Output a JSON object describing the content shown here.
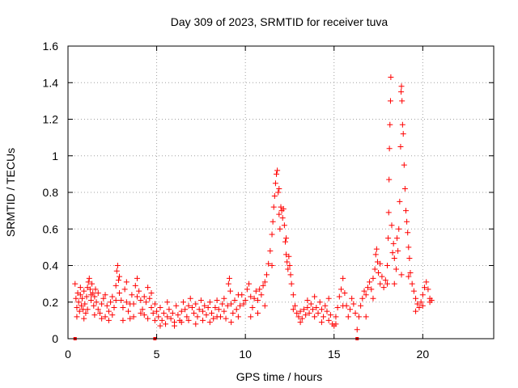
{
  "chart_data": {
    "type": "scatter",
    "title": "Day 309 of 2023, SRMTID for receiver tuva",
    "xlabel": "GPS time / hours",
    "ylabel": "SRMTID / TECUs",
    "xlim": [
      0,
      24
    ],
    "ylim": [
      0,
      1.6
    ],
    "xticks": [
      0,
      5,
      10,
      15,
      20
    ],
    "yticks": [
      0,
      0.2,
      0.4,
      0.6,
      0.8,
      1,
      1.2,
      1.4,
      1.6
    ],
    "xtick_labels": [
      "0",
      "5",
      "10",
      "15",
      "20"
    ],
    "ytick_labels": [
      "0",
      "0.2",
      "0.4",
      "0.6",
      "0.8",
      "1",
      "1.2",
      "1.4",
      "1.6"
    ],
    "grid": true,
    "marker": "+",
    "color": "#ff0000",
    "series": [
      {
        "name": "SRMTID",
        "points": [
          [
            0.4,
            0.3
          ],
          [
            0.45,
            0.22
          ],
          [
            0.5,
            0.17
          ],
          [
            0.55,
            0.25
          ],
          [
            0.6,
            0.2
          ],
          [
            0.65,
            0.15
          ],
          [
            0.7,
            0.24
          ],
          [
            0.75,
            0.18
          ],
          [
            0.8,
            0.22
          ],
          [
            0.85,
            0.16
          ],
          [
            0.9,
            0.26
          ],
          [
            0.95,
            0.19
          ],
          [
            1.0,
            0.14
          ],
          [
            1.05,
            0.23
          ],
          [
            1.1,
            0.28
          ],
          [
            1.15,
            0.31
          ],
          [
            1.2,
            0.33
          ],
          [
            1.25,
            0.27
          ],
          [
            1.3,
            0.21
          ],
          [
            1.35,
            0.3
          ],
          [
            1.4,
            0.25
          ],
          [
            1.45,
            0.18
          ],
          [
            1.5,
            0.23
          ],
          [
            1.55,
            0.27
          ],
          [
            1.6,
            0.2
          ],
          [
            1.7,
            0.16
          ],
          [
            1.8,
            0.14
          ],
          [
            1.9,
            0.19
          ],
          [
            2.0,
            0.22
          ],
          [
            2.1,
            0.12
          ],
          [
            2.2,
            0.18
          ],
          [
            2.3,
            0.15
          ],
          [
            2.4,
            0.2
          ],
          [
            2.5,
            0.23
          ],
          [
            2.6,
            0.17
          ],
          [
            2.7,
            0.29
          ],
          [
            2.75,
            0.37
          ],
          [
            2.8,
            0.4
          ],
          [
            2.85,
            0.32
          ],
          [
            2.9,
            0.25
          ],
          [
            3.0,
            0.21
          ],
          [
            3.1,
            0.17
          ],
          [
            3.2,
            0.27
          ],
          [
            3.3,
            0.2
          ],
          [
            3.4,
            0.15
          ],
          [
            3.5,
            0.11
          ],
          [
            3.6,
            0.24
          ],
          [
            3.7,
            0.19
          ],
          [
            3.8,
            0.29
          ],
          [
            3.9,
            0.33
          ],
          [
            4.0,
            0.26
          ],
          [
            4.1,
            0.21
          ],
          [
            4.2,
            0.16
          ],
          [
            4.3,
            0.13
          ],
          [
            4.4,
            0.2
          ],
          [
            4.5,
            0.28
          ],
          [
            4.6,
            0.22
          ],
          [
            4.7,
            0.17
          ],
          [
            4.8,
            0.14
          ],
          [
            4.9,
            0.19
          ],
          [
            0.5,
            0.12
          ],
          [
            0.7,
            0.28
          ],
          [
            0.9,
            0.11
          ],
          [
            1.1,
            0.16
          ],
          [
            1.3,
            0.24
          ],
          [
            1.5,
            0.13
          ],
          [
            1.7,
            0.25
          ],
          [
            1.9,
            0.11
          ],
          [
            2.1,
            0.24
          ],
          [
            2.3,
            0.1
          ],
          [
            2.5,
            0.13
          ],
          [
            2.7,
            0.21
          ],
          [
            2.9,
            0.34
          ],
          [
            3.1,
            0.1
          ],
          [
            3.3,
            0.31
          ],
          [
            3.5,
            0.19
          ],
          [
            3.7,
            0.12
          ],
          [
            3.9,
            0.23
          ],
          [
            4.1,
            0.14
          ],
          [
            4.3,
            0.23
          ],
          [
            4.5,
            0.11
          ],
          [
            4.7,
            0.25
          ],
          [
            4.9,
            0.1
          ],
          [
            5.0,
            0.15
          ],
          [
            5.1,
            0.12
          ],
          [
            5.2,
            0.17
          ],
          [
            5.3,
            0.1
          ],
          [
            5.4,
            0.14
          ],
          [
            5.5,
            0.08
          ],
          [
            5.6,
            0.12
          ],
          [
            5.7,
            0.16
          ],
          [
            5.8,
            0.11
          ],
          [
            5.9,
            0.14
          ],
          [
            6.0,
            0.09
          ],
          [
            6.1,
            0.18
          ],
          [
            6.2,
            0.13
          ],
          [
            6.3,
            0.1
          ],
          [
            6.4,
            0.15
          ],
          [
            6.5,
            0.2
          ],
          [
            6.6,
            0.16
          ],
          [
            6.7,
            0.12
          ],
          [
            6.8,
            0.18
          ],
          [
            6.9,
            0.22
          ],
          [
            7.0,
            0.17
          ],
          [
            7.1,
            0.14
          ],
          [
            7.2,
            0.19
          ],
          [
            7.3,
            0.12
          ],
          [
            7.4,
            0.16
          ],
          [
            7.5,
            0.21
          ],
          [
            7.6,
            0.15
          ],
          [
            7.7,
            0.18
          ],
          [
            7.8,
            0.13
          ],
          [
            7.9,
            0.17
          ],
          [
            8.0,
            0.2
          ],
          [
            8.1,
            0.14
          ],
          [
            8.2,
            0.11
          ],
          [
            8.3,
            0.17
          ],
          [
            8.4,
            0.21
          ],
          [
            8.5,
            0.16
          ],
          [
            8.6,
            0.12
          ],
          [
            8.7,
            0.19
          ],
          [
            8.8,
            0.15
          ],
          [
            8.9,
            0.11
          ],
          [
            9.0,
            0.18
          ],
          [
            9.05,
            0.3
          ],
          [
            9.1,
            0.33
          ],
          [
            9.15,
            0.26
          ],
          [
            9.2,
            0.19
          ],
          [
            9.3,
            0.14
          ],
          [
            9.4,
            0.21
          ],
          [
            9.5,
            0.16
          ],
          [
            9.6,
            0.12
          ],
          [
            9.7,
            0.18
          ],
          [
            9.8,
            0.24
          ],
          [
            9.9,
            0.19
          ],
          [
            5.2,
            0.07
          ],
          [
            5.6,
            0.2
          ],
          [
            6.0,
            0.07
          ],
          [
            6.4,
            0.09
          ],
          [
            6.8,
            0.1
          ],
          [
            7.2,
            0.08
          ],
          [
            7.6,
            0.1
          ],
          [
            8.0,
            0.09
          ],
          [
            8.4,
            0.12
          ],
          [
            8.8,
            0.22
          ],
          [
            9.2,
            0.09
          ],
          [
            9.6,
            0.24
          ],
          [
            10.0,
            0.21
          ],
          [
            10.1,
            0.27
          ],
          [
            10.2,
            0.3
          ],
          [
            10.3,
            0.23
          ],
          [
            10.4,
            0.17
          ],
          [
            10.5,
            0.22
          ],
          [
            10.6,
            0.26
          ],
          [
            10.7,
            0.21
          ],
          [
            10.8,
            0.27
          ],
          [
            10.9,
            0.24
          ],
          [
            11.0,
            0.29
          ],
          [
            11.1,
            0.31
          ],
          [
            11.2,
            0.35
          ],
          [
            11.3,
            0.41
          ],
          [
            11.4,
            0.48
          ],
          [
            11.5,
            0.57
          ],
          [
            11.55,
            0.64
          ],
          [
            11.6,
            0.72
          ],
          [
            11.65,
            0.78
          ],
          [
            11.7,
            0.85
          ],
          [
            11.75,
            0.9
          ],
          [
            11.8,
            0.92
          ],
          [
            11.85,
            0.8
          ],
          [
            11.9,
            0.68
          ],
          [
            11.95,
            0.6
          ],
          [
            12.0,
            0.72
          ],
          [
            12.05,
            0.7
          ],
          [
            12.1,
            0.66
          ],
          [
            12.15,
            0.71
          ],
          [
            12.2,
            0.62
          ],
          [
            12.25,
            0.53
          ],
          [
            12.3,
            0.46
          ],
          [
            12.35,
            0.42
          ],
          [
            12.4,
            0.38
          ],
          [
            12.45,
            0.45
          ],
          [
            12.5,
            0.4
          ],
          [
            12.55,
            0.35
          ],
          [
            12.6,
            0.3
          ],
          [
            12.7,
            0.24
          ],
          [
            12.8,
            0.18
          ],
          [
            12.9,
            0.14
          ],
          [
            13.0,
            0.12
          ],
          [
            13.1,
            0.15
          ],
          [
            13.2,
            0.11
          ],
          [
            13.3,
            0.16
          ],
          [
            13.4,
            0.13
          ],
          [
            13.5,
            0.17
          ],
          [
            13.6,
            0.14
          ],
          [
            13.7,
            0.19
          ],
          [
            13.8,
            0.16
          ],
          [
            13.9,
            0.12
          ],
          [
            14.0,
            0.17
          ],
          [
            14.1,
            0.14
          ],
          [
            14.2,
            0.2
          ],
          [
            14.3,
            0.16
          ],
          [
            14.4,
            0.12
          ],
          [
            14.5,
            0.18
          ],
          [
            14.6,
            0.15
          ],
          [
            14.7,
            0.1
          ],
          [
            14.8,
            0.13
          ],
          [
            14.9,
            0.08
          ],
          [
            15.0,
            0.07
          ],
          [
            15.1,
            0.12
          ],
          [
            15.2,
            0.17
          ],
          [
            15.3,
            0.23
          ],
          [
            15.4,
            0.27
          ],
          [
            15.5,
            0.33
          ],
          [
            15.6,
            0.25
          ],
          [
            15.7,
            0.18
          ],
          [
            15.8,
            0.12
          ],
          [
            15.9,
            0.16
          ],
          [
            16.0,
            0.22
          ],
          [
            16.1,
            0.19
          ],
          [
            16.2,
            0.14
          ],
          [
            16.3,
            0.05
          ],
          [
            16.4,
            0.12
          ],
          [
            10.3,
            0.12
          ],
          [
            10.7,
            0.14
          ],
          [
            11.1,
            0.18
          ],
          [
            11.5,
            0.4
          ],
          [
            11.9,
            0.82
          ],
          [
            12.3,
            0.55
          ],
          [
            12.7,
            0.16
          ],
          [
            13.1,
            0.09
          ],
          [
            13.5,
            0.21
          ],
          [
            13.9,
            0.23
          ],
          [
            14.3,
            0.09
          ],
          [
            14.7,
            0.22
          ],
          [
            15.1,
            0.08
          ],
          [
            15.5,
            0.18
          ],
          [
            16.5,
            0.18
          ],
          [
            16.6,
            0.22
          ],
          [
            16.7,
            0.26
          ],
          [
            16.8,
            0.24
          ],
          [
            16.9,
            0.28
          ],
          [
            17.0,
            0.31
          ],
          [
            17.1,
            0.27
          ],
          [
            17.2,
            0.33
          ],
          [
            17.3,
            0.38
          ],
          [
            17.35,
            0.46
          ],
          [
            17.4,
            0.49
          ],
          [
            17.45,
            0.42
          ],
          [
            17.5,
            0.36
          ],
          [
            17.6,
            0.3
          ],
          [
            17.7,
            0.34
          ],
          [
            17.8,
            0.28
          ],
          [
            17.9,
            0.32
          ],
          [
            18.0,
            0.4
          ],
          [
            18.05,
            0.55
          ],
          [
            18.08,
            0.69
          ],
          [
            18.1,
            0.87
          ],
          [
            18.12,
            1.04
          ],
          [
            18.15,
            1.17
          ],
          [
            18.18,
            1.3
          ],
          [
            18.2,
            1.43
          ],
          [
            18.25,
            0.62
          ],
          [
            18.3,
            0.47
          ],
          [
            18.35,
            0.52
          ],
          [
            18.4,
            0.44
          ],
          [
            18.5,
            0.38
          ],
          [
            18.55,
            0.55
          ],
          [
            18.6,
            0.48
          ],
          [
            18.65,
            0.6
          ],
          [
            18.7,
            0.75
          ],
          [
            18.75,
            1.05
          ],
          [
            18.78,
            1.35
          ],
          [
            18.8,
            1.38
          ],
          [
            18.83,
            1.3
          ],
          [
            18.86,
            1.17
          ],
          [
            18.9,
            1.12
          ],
          [
            18.95,
            0.95
          ],
          [
            19.0,
            0.82
          ],
          [
            19.05,
            0.7
          ],
          [
            19.1,
            0.64
          ],
          [
            19.15,
            0.58
          ],
          [
            19.2,
            0.5
          ],
          [
            19.25,
            0.44
          ],
          [
            19.3,
            0.36
          ],
          [
            19.4,
            0.3
          ],
          [
            19.5,
            0.26
          ],
          [
            19.6,
            0.22
          ],
          [
            19.7,
            0.19
          ],
          [
            19.8,
            0.17
          ],
          [
            19.9,
            0.2
          ],
          [
            20.0,
            0.24
          ],
          [
            20.1,
            0.28
          ],
          [
            20.2,
            0.31
          ],
          [
            20.3,
            0.27
          ],
          [
            20.4,
            0.22
          ],
          [
            20.5,
            0.21
          ],
          [
            16.8,
            0.12
          ],
          [
            17.2,
            0.22
          ],
          [
            17.6,
            0.41
          ],
          [
            18.0,
            0.3
          ],
          [
            18.4,
            0.3
          ],
          [
            18.8,
            0.35
          ],
          [
            19.2,
            0.34
          ],
          [
            19.6,
            0.15
          ],
          [
            20.0,
            0.18
          ],
          [
            20.4,
            0.2
          ]
        ]
      }
    ],
    "baseline_markers": [
      0.4,
      4.9,
      16.3
    ]
  }
}
